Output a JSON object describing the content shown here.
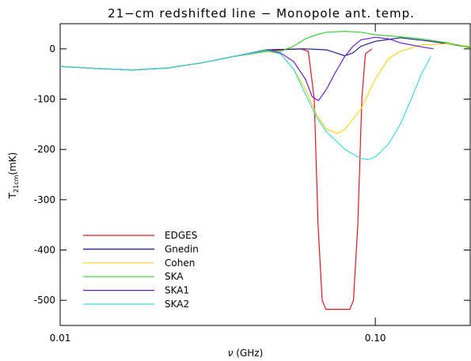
{
  "chart_data": {
    "type": "line",
    "title": "21−cm redshifted line − Monopole ant. temp.",
    "xlabel_symbol": "ν",
    "xlabel_unit": "(GHz)",
    "ylabel_symbol": "T",
    "ylabel_subscript": "21cm",
    "ylabel_unit": "(mK)",
    "xscale": "log",
    "xlim": [
      0.01,
      0.2
    ],
    "ylim": [
      -550,
      50
    ],
    "xticks": [
      0.01,
      {
        "value": 0.1,
        "label": "0.10"
      }
    ],
    "yticks": [
      -500,
      -400,
      -300,
      -200,
      -100,
      0
    ],
    "legend": "lower left",
    "series": [
      {
        "name": "EDGES",
        "color": "#e8141e",
        "x": [
          0.01,
          0.013,
          0.017,
          0.022,
          0.028,
          0.035,
          0.045,
          0.05,
          0.058,
          0.0613,
          0.064,
          0.0658,
          0.0678,
          0.0697,
          0.083,
          0.0852,
          0.088,
          0.0906,
          0.093,
          0.0977
        ],
        "values": [
          -35,
          -39,
          -42,
          -38,
          -28,
          -16,
          -5,
          -2,
          0,
          -5,
          -100,
          -350,
          -500,
          -518,
          -518,
          -500,
          -350,
          -100,
          -10,
          0
        ]
      },
      {
        "name": "Gnedin",
        "color": "#1c1c8c",
        "x": [
          0.01,
          0.013,
          0.017,
          0.022,
          0.028,
          0.035,
          0.045,
          0.06,
          0.07,
          0.075,
          0.08,
          0.085,
          0.09,
          0.1,
          0.12,
          0.15,
          0.2
        ],
        "values": [
          -35,
          -39,
          -42,
          -38,
          -28,
          -16,
          -2,
          0,
          -2,
          -8,
          -14,
          -8,
          5,
          15,
          22,
          15,
          3
        ]
      },
      {
        "name": "Cohen",
        "color": "#ffd21e",
        "x": [
          0.01,
          0.013,
          0.017,
          0.022,
          0.028,
          0.035,
          0.045,
          0.05,
          0.055,
          0.06,
          0.065,
          0.07,
          0.076,
          0.08,
          0.09,
          0.1,
          0.11,
          0.12,
          0.14,
          0.17,
          0.2
        ],
        "values": [
          -35,
          -39,
          -42,
          -38,
          -28,
          -16,
          -5,
          -10,
          -40,
          -80,
          -130,
          -160,
          -168,
          -160,
          -120,
          -60,
          -20,
          -5,
          8,
          10,
          5
        ]
      },
      {
        "name": "SKA",
        "color": "#3cd23c",
        "x": [
          0.01,
          0.013,
          0.017,
          0.022,
          0.028,
          0.035,
          0.045,
          0.05,
          0.055,
          0.06,
          0.065,
          0.07,
          0.08,
          0.09,
          0.1,
          0.12,
          0.14,
          0.17,
          0.2
        ],
        "values": [
          -35,
          -39,
          -42,
          -38,
          -28,
          -16,
          -5,
          -5,
          5,
          20,
          28,
          33,
          35,
          33,
          28,
          24,
          20,
          12,
          2
        ]
      },
      {
        "name": "SKA1",
        "color": "#6a1ed2",
        "x": [
          0.01,
          0.013,
          0.017,
          0.022,
          0.028,
          0.035,
          0.045,
          0.05,
          0.055,
          0.06,
          0.063,
          0.066,
          0.07,
          0.075,
          0.08,
          0.085,
          0.09,
          0.1,
          0.11,
          0.12,
          0.14,
          0.153
        ],
        "values": [
          -35,
          -39,
          -42,
          -38,
          -28,
          -16,
          -3,
          -8,
          -25,
          -60,
          -95,
          -103,
          -80,
          -45,
          -15,
          5,
          18,
          23,
          20,
          12,
          4,
          0
        ]
      },
      {
        "name": "SKA2",
        "color": "#3cdcdc",
        "x": [
          0.01,
          0.013,
          0.017,
          0.022,
          0.028,
          0.035,
          0.045,
          0.05,
          0.055,
          0.06,
          0.065,
          0.07,
          0.08,
          0.09,
          0.095,
          0.1,
          0.11,
          0.12,
          0.13,
          0.14,
          0.15
        ],
        "values": [
          -35,
          -39,
          -42,
          -38,
          -28,
          -16,
          -3,
          -10,
          -40,
          -90,
          -135,
          -165,
          -200,
          -218,
          -220,
          -215,
          -190,
          -150,
          -100,
          -50,
          -15
        ]
      }
    ]
  }
}
